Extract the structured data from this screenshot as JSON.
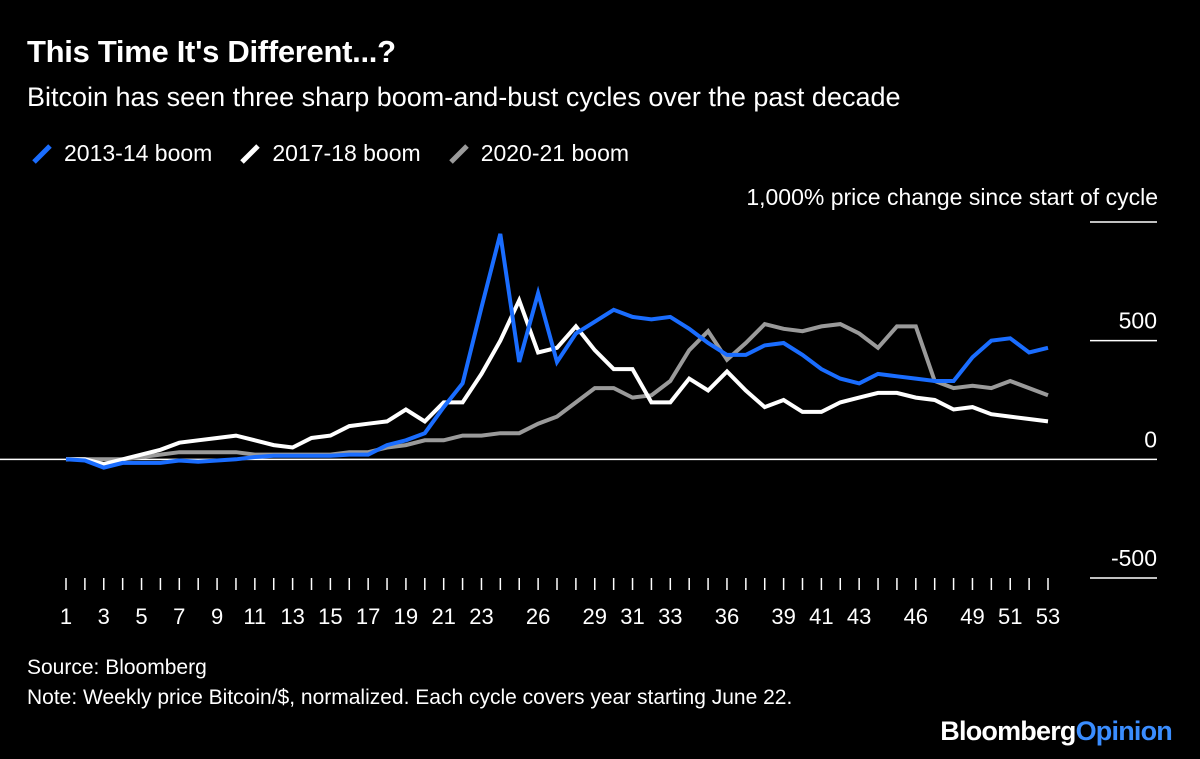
{
  "header": {
    "title": "This Time It's Different...?",
    "subtitle": "Bitcoin has seen three sharp boom-and-bust cycles over the past decade"
  },
  "legend": [
    {
      "label": "2013-14 boom",
      "color": "#1a6dff"
    },
    {
      "label": "2017-18 boom",
      "color": "#ffffff"
    },
    {
      "label": "2020-21 boom",
      "color": "#9a9a9a"
    }
  ],
  "footer": {
    "source": "Source: Bloomberg",
    "note": "Note: Weekly price Bitcoin/$, normalized. Each cycle covers year starting June 22.",
    "brand_main": "Bloomberg",
    "brand_accent": "Opinion"
  },
  "chart_data": {
    "type": "line",
    "ylabel": "1,000% price change since start of cycle",
    "ylim": [
      -500,
      1000
    ],
    "yticks": [
      1000,
      500,
      0,
      -500
    ],
    "ytick_labels": [
      "",
      "500",
      "0",
      "-500"
    ],
    "xlim": [
      1,
      53
    ],
    "xticks": [
      1,
      3,
      5,
      7,
      9,
      11,
      13,
      15,
      17,
      19,
      21,
      23,
      26,
      29,
      31,
      33,
      36,
      39,
      41,
      43,
      46,
      49,
      51,
      53
    ],
    "grid": "horizontal",
    "legend_position": "top-left",
    "series": [
      {
        "name": "2013-14 boom",
        "color": "#1a6dff",
        "x": [
          1,
          2,
          3,
          4,
          5,
          6,
          7,
          8,
          9,
          10,
          11,
          12,
          13,
          14,
          15,
          16,
          17,
          18,
          19,
          20,
          21,
          22,
          23,
          24,
          25,
          26,
          27,
          28,
          29,
          30,
          31,
          32,
          33,
          34,
          35,
          36,
          37,
          38,
          39,
          40,
          41,
          42,
          43,
          44,
          45,
          46,
          47,
          48,
          49,
          50,
          51,
          52,
          53
        ],
        "values": [
          0,
          -5,
          -35,
          -15,
          -15,
          -15,
          -5,
          -10,
          -5,
          0,
          10,
          15,
          15,
          15,
          15,
          20,
          20,
          60,
          80,
          110,
          220,
          320,
          640,
          950,
          410,
          700,
          410,
          530,
          580,
          630,
          600,
          590,
          600,
          550,
          490,
          440,
          440,
          480,
          490,
          440,
          380,
          340,
          320,
          360,
          350,
          340,
          330,
          330,
          430,
          500,
          510,
          450,
          470
        ]
      },
      {
        "name": "2017-18 boom",
        "color": "#ffffff",
        "x": [
          1,
          2,
          3,
          4,
          5,
          6,
          7,
          8,
          9,
          10,
          11,
          12,
          13,
          14,
          15,
          16,
          17,
          18,
          19,
          20,
          21,
          22,
          23,
          24,
          25,
          26,
          27,
          28,
          29,
          30,
          31,
          32,
          33,
          34,
          35,
          36,
          37,
          38,
          39,
          40,
          41,
          42,
          43,
          44,
          45,
          46,
          47,
          48,
          49,
          50,
          51,
          52,
          53
        ],
        "values": [
          0,
          0,
          -20,
          0,
          20,
          40,
          70,
          80,
          90,
          100,
          80,
          60,
          50,
          90,
          100,
          140,
          150,
          160,
          210,
          160,
          240,
          240,
          360,
          500,
          670,
          450,
          470,
          560,
          460,
          380,
          380,
          240,
          240,
          340,
          290,
          370,
          290,
          220,
          250,
          200,
          200,
          240,
          260,
          280,
          280,
          260,
          250,
          210,
          220,
          190,
          180,
          170,
          160
        ]
      },
      {
        "name": "2020-21 boom",
        "color": "#9a9a9a",
        "x": [
          1,
          2,
          3,
          4,
          5,
          6,
          7,
          8,
          9,
          10,
          11,
          12,
          13,
          14,
          15,
          16,
          17,
          18,
          19,
          20,
          21,
          22,
          23,
          24,
          25,
          26,
          27,
          28,
          29,
          30,
          31,
          32,
          33,
          34,
          35,
          36,
          37,
          38,
          39,
          40,
          41,
          42,
          43,
          44,
          45,
          46,
          47,
          48,
          49,
          50,
          51,
          52,
          53
        ],
        "values": [
          0,
          0,
          0,
          0,
          10,
          20,
          30,
          30,
          30,
          30,
          20,
          20,
          20,
          20,
          20,
          30,
          30,
          50,
          60,
          80,
          80,
          100,
          100,
          110,
          110,
          150,
          180,
          240,
          300,
          300,
          260,
          270,
          330,
          460,
          540,
          420,
          490,
          570,
          550,
          540,
          560,
          570,
          530,
          470,
          560,
          560,
          330,
          300,
          310,
          300,
          330,
          300,
          270
        ]
      }
    ]
  }
}
